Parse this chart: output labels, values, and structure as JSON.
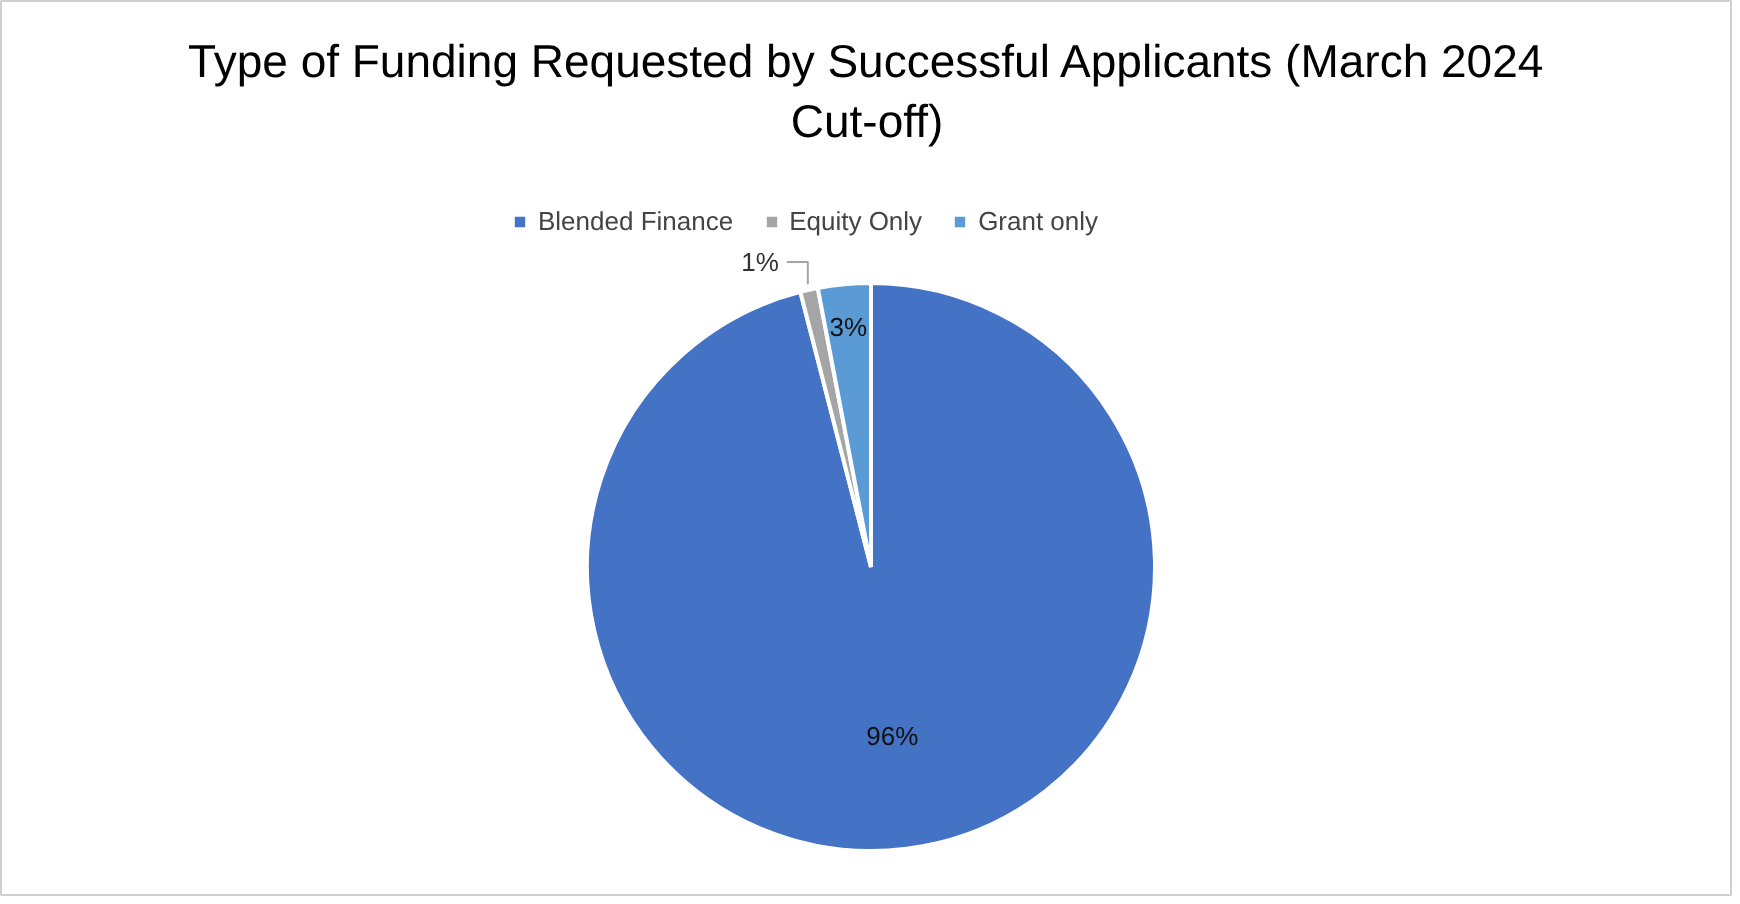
{
  "chart_data": {
    "type": "pie",
    "title": "Type of Funding Requested by Successful Applicants (March 2024 Cut-off)",
    "categories": [
      "Blended Finance",
      "Equity Only",
      "Grant only"
    ],
    "values": [
      96,
      1,
      3
    ],
    "colors": [
      "#4472c4",
      "#a5a5a5",
      "#5b9bd5"
    ],
    "value_labels": [
      "96%",
      "1%",
      "3%"
    ],
    "legend": "top"
  }
}
